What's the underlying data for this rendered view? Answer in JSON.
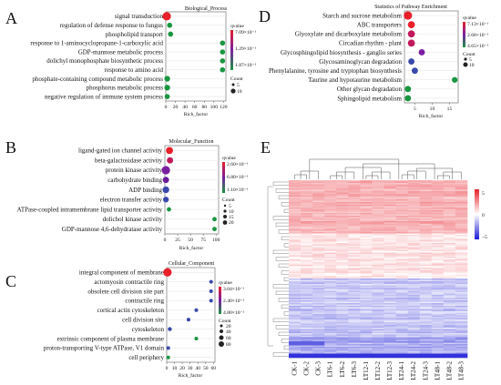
{
  "panel_labels": [
    "A",
    "B",
    "C",
    "D",
    "E"
  ],
  "colors": {
    "qvalue_high": "#e8202a",
    "qvalue_mid": "#7b1fa2",
    "qvalue_low": "#1a9641",
    "heat_high": "#e8202a",
    "heat_mid": "#ffffff",
    "heat_low": "#1b1bd6"
  },
  "chart_data": [
    {
      "type": "scatter",
      "panel": "A",
      "title": "Biological_Process",
      "xlabel": "Rich_factor",
      "x_ticks": [
        "0",
        "20",
        "40",
        "60",
        "80",
        "100",
        "120"
      ],
      "xlim": [
        0,
        125
      ],
      "legend": {
        "color_title": "qvalue",
        "color_labels": [
          "7.09×10⁻¹",
          "1.29×10⁻¹",
          "1.87×10⁻¹"
        ],
        "size_title": "Count",
        "size_labels": [
          "5",
          "10"
        ]
      },
      "categories": [
        "signal transduction",
        "regulation of defense response to fungus",
        "phospholipid transport",
        "response to 1-aminocyclopropane-1-carboxylic acid",
        "GDP-mannose metabolic process",
        "dolichyl monophosphate biosynthetic process",
        "response to amino acid",
        "phosphate-containing compound metabolic process",
        "phosphorus metabolic process",
        "negative regulation of immune system process"
      ],
      "points": [
        {
          "x": 2,
          "count": 10,
          "color": "#e8202a"
        },
        {
          "x": 8,
          "count": 2,
          "color": "#1a9641"
        },
        {
          "x": 10,
          "count": 2,
          "color": "#1a9641"
        },
        {
          "x": 118,
          "count": 2,
          "color": "#1a9641"
        },
        {
          "x": 118,
          "count": 2,
          "color": "#1a9641"
        },
        {
          "x": 118,
          "count": 2,
          "color": "#1a9641"
        },
        {
          "x": 118,
          "count": 2,
          "color": "#1a9641"
        },
        {
          "x": 3,
          "count": 3,
          "color": "#1a9641"
        },
        {
          "x": 3,
          "count": 3,
          "color": "#1a9641"
        },
        {
          "x": 3,
          "count": 2,
          "color": "#1a9641"
        }
      ]
    },
    {
      "type": "scatter",
      "panel": "B",
      "title": "Molecular_Function",
      "xlabel": "Rich_factor",
      "x_ticks": [
        "0",
        "25",
        "50",
        "75",
        "100"
      ],
      "xlim": [
        0,
        105
      ],
      "legend": {
        "color_title": "qvalue",
        "color_labels": [
          "2.60×10⁻¹",
          "6.80×10⁻¹",
          "1.10×10⁻¹"
        ],
        "size_title": "Count",
        "size_labels": [
          "5",
          "10",
          "15",
          "20"
        ]
      },
      "categories": [
        "ligand-gated ion channel activity",
        "beta-galactosidase activity",
        "protein kinase activity",
        "carbohydrate binding",
        "ADP binding",
        "electron transfer activity",
        "ATPase-coupled intramembrane lipid transporter activity",
        "dolichol kinase activity",
        "GDP-mannose 4,6-dehydratase activity"
      ],
      "points": [
        {
          "x": 9,
          "count": 12,
          "color": "#e8202a"
        },
        {
          "x": 10,
          "count": 8,
          "color": "#c2185b"
        },
        {
          "x": 2,
          "count": 20,
          "color": "#7b1fa2"
        },
        {
          "x": 2,
          "count": 8,
          "color": "#6a1b9a"
        },
        {
          "x": 2,
          "count": 10,
          "color": "#3949ab"
        },
        {
          "x": 2,
          "count": 6,
          "color": "#3949ab"
        },
        {
          "x": 8,
          "count": 2,
          "color": "#1a9641"
        },
        {
          "x": 97,
          "count": 2,
          "color": "#1a9641"
        },
        {
          "x": 97,
          "count": 2,
          "color": "#1a9641"
        }
      ]
    },
    {
      "type": "scatter",
      "panel": "C",
      "title": "Cellular_Component",
      "xlabel": "Rich_factor",
      "x_ticks": [
        "0",
        "10",
        "20",
        "30",
        "40",
        "50",
        "60"
      ],
      "xlim": [
        0,
        62
      ],
      "legend": {
        "color_title": "qvalue",
        "color_labels": [
          "3.04×10⁻¹",
          "2.40×10⁻¹",
          "4.80×10⁻¹"
        ],
        "size_title": "Count",
        "size_labels": [
          "20",
          "40",
          "60",
          "80"
        ]
      },
      "categories": [
        "integral component of membrane",
        "actomyosin contractile ring",
        "obsolete cell division site part",
        "contractile ring",
        "cortical actin cytoskeleton",
        "cell division site",
        "cytoskeleton",
        "extrinsic component of plasma membrane",
        "proton-transporting V-type ATPase, V1 domain",
        "cell periphery"
      ],
      "points": [
        {
          "x": 1,
          "count": 80,
          "color": "#e8202a"
        },
        {
          "x": 57,
          "count": 3,
          "color": "#3949ab"
        },
        {
          "x": 57,
          "count": 3,
          "color": "#3949ab"
        },
        {
          "x": 57,
          "count": 3,
          "color": "#3949ab"
        },
        {
          "x": 38,
          "count": 3,
          "color": "#3949ab"
        },
        {
          "x": 28,
          "count": 3,
          "color": "#3949ab"
        },
        {
          "x": 4,
          "count": 5,
          "color": "#3949ab"
        },
        {
          "x": 38,
          "count": 3,
          "color": "#1a9641"
        },
        {
          "x": 2,
          "count": 3,
          "color": "#3949ab"
        },
        {
          "x": 2,
          "count": 3,
          "color": "#1a9641"
        }
      ]
    },
    {
      "type": "scatter",
      "panel": "D",
      "title": "Statistics of Pathway Enrichment",
      "xlabel": "Rich_factor",
      "x_ticks": [
        "5",
        "10",
        "15"
      ],
      "xlim": [
        2,
        17.5
      ],
      "legend": {
        "color_title": "qvalue",
        "color_labels": [
          "7.13×10⁻¹",
          "2.68×10⁻¹",
          "4.65×10⁻¹"
        ],
        "size_title": "Count",
        "size_labels": [
          "5",
          "10"
        ]
      },
      "categories": [
        "Starch and sucrose metabolism",
        "ABC transporters",
        "Glyoxylate and dicarboxylate metabolism",
        "Circadian rhythm - plant",
        "Glycosphingolipid biosynthesis - ganglio series",
        "Glycosaminoglycan degradation",
        "Phenylalanine, tyrosine and tryptophan biosynthesis",
        "Taurine and hypotaurine metabolism",
        "Other glycan degradation",
        "Sphingolipid metabolism"
      ],
      "points": [
        {
          "x": 3,
          "count": 10,
          "color": "#e8202a"
        },
        {
          "x": 4,
          "count": 6,
          "color": "#e8202a"
        },
        {
          "x": 4,
          "count": 6,
          "color": "#c2185b"
        },
        {
          "x": 4,
          "count": 6,
          "color": "#c2185b"
        },
        {
          "x": 7,
          "count": 4,
          "color": "#7b1fa2"
        },
        {
          "x": 4,
          "count": 4,
          "color": "#3949ab"
        },
        {
          "x": 5,
          "count": 4,
          "color": "#3949ab"
        },
        {
          "x": 16.5,
          "count": 3,
          "color": "#1a9641"
        },
        {
          "x": 3,
          "count": 4,
          "color": "#1a9641"
        },
        {
          "x": 3,
          "count": 4,
          "color": "#1a9641"
        }
      ]
    },
    {
      "type": "heatmap",
      "panel": "E",
      "columns": [
        "CK-1",
        "CK-2",
        "CK-3",
        "LT6-1",
        "LT6-2",
        "LT6-3",
        "LT12-1",
        "LT12-2",
        "LT12-3",
        "LT24-1",
        "LT24-2",
        "LT24-3",
        "LT48-1",
        "LT48-2",
        "LT48-3"
      ],
      "color_scale_labels": [
        "5",
        "0",
        "−5"
      ],
      "color_scale_range": [
        -5,
        5
      ]
    }
  ]
}
